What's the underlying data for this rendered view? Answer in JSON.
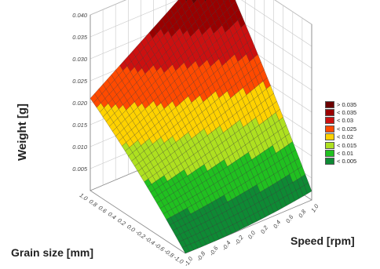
{
  "chart_data": {
    "type": "surface",
    "title": "",
    "xlabel": "Grain size [mm]",
    "ylabel": "Speed [rpm]",
    "zlabel": "Weight [g]",
    "xlim": [
      -1.0,
      1.0
    ],
    "ylim": [
      -1.0,
      1.0
    ],
    "zlim": [
      0.0,
      0.04
    ],
    "x_ticks": [
      "-1.0",
      "-0.8",
      "-0.6",
      "-0.4",
      "-0.2",
      "0.0",
      "0.2",
      "0.4",
      "0.6",
      "0.8",
      "1.0"
    ],
    "y_ticks": [
      "-1.0",
      "-0.8",
      "-0.6",
      "-0.4",
      "-0.2",
      "0.0",
      "0.2",
      "0.4",
      "0.6",
      "0.8",
      "1.0"
    ],
    "z_ticks": [
      "0.005",
      "0.010",
      "0.015",
      "0.020",
      "0.025",
      "0.030",
      "0.035",
      "0.040"
    ],
    "surface_corners": {
      "grain_-1_speed_-1": 0.0,
      "grain_1_speed_-1": 0.021,
      "grain_-1_speed_1": 0.002,
      "grain_1_speed_1": 0.041
    },
    "legend": {
      "placement": "right",
      "entries": [
        {
          "label": "> 0.035",
          "color": "#6b0000"
        },
        {
          "label": "< 0.035",
          "color": "#9a0000"
        },
        {
          "label": "< 0.03",
          "color": "#cc1010"
        },
        {
          "label": "< 0.025",
          "color": "#ff4a00"
        },
        {
          "label": "< 0.02",
          "color": "#ffd200"
        },
        {
          "label": "< 0.015",
          "color": "#aee020"
        },
        {
          "label": "< 0.01",
          "color": "#20c020"
        },
        {
          "label": "< 0.005",
          "color": "#0e8a34"
        }
      ]
    },
    "grid": true
  }
}
